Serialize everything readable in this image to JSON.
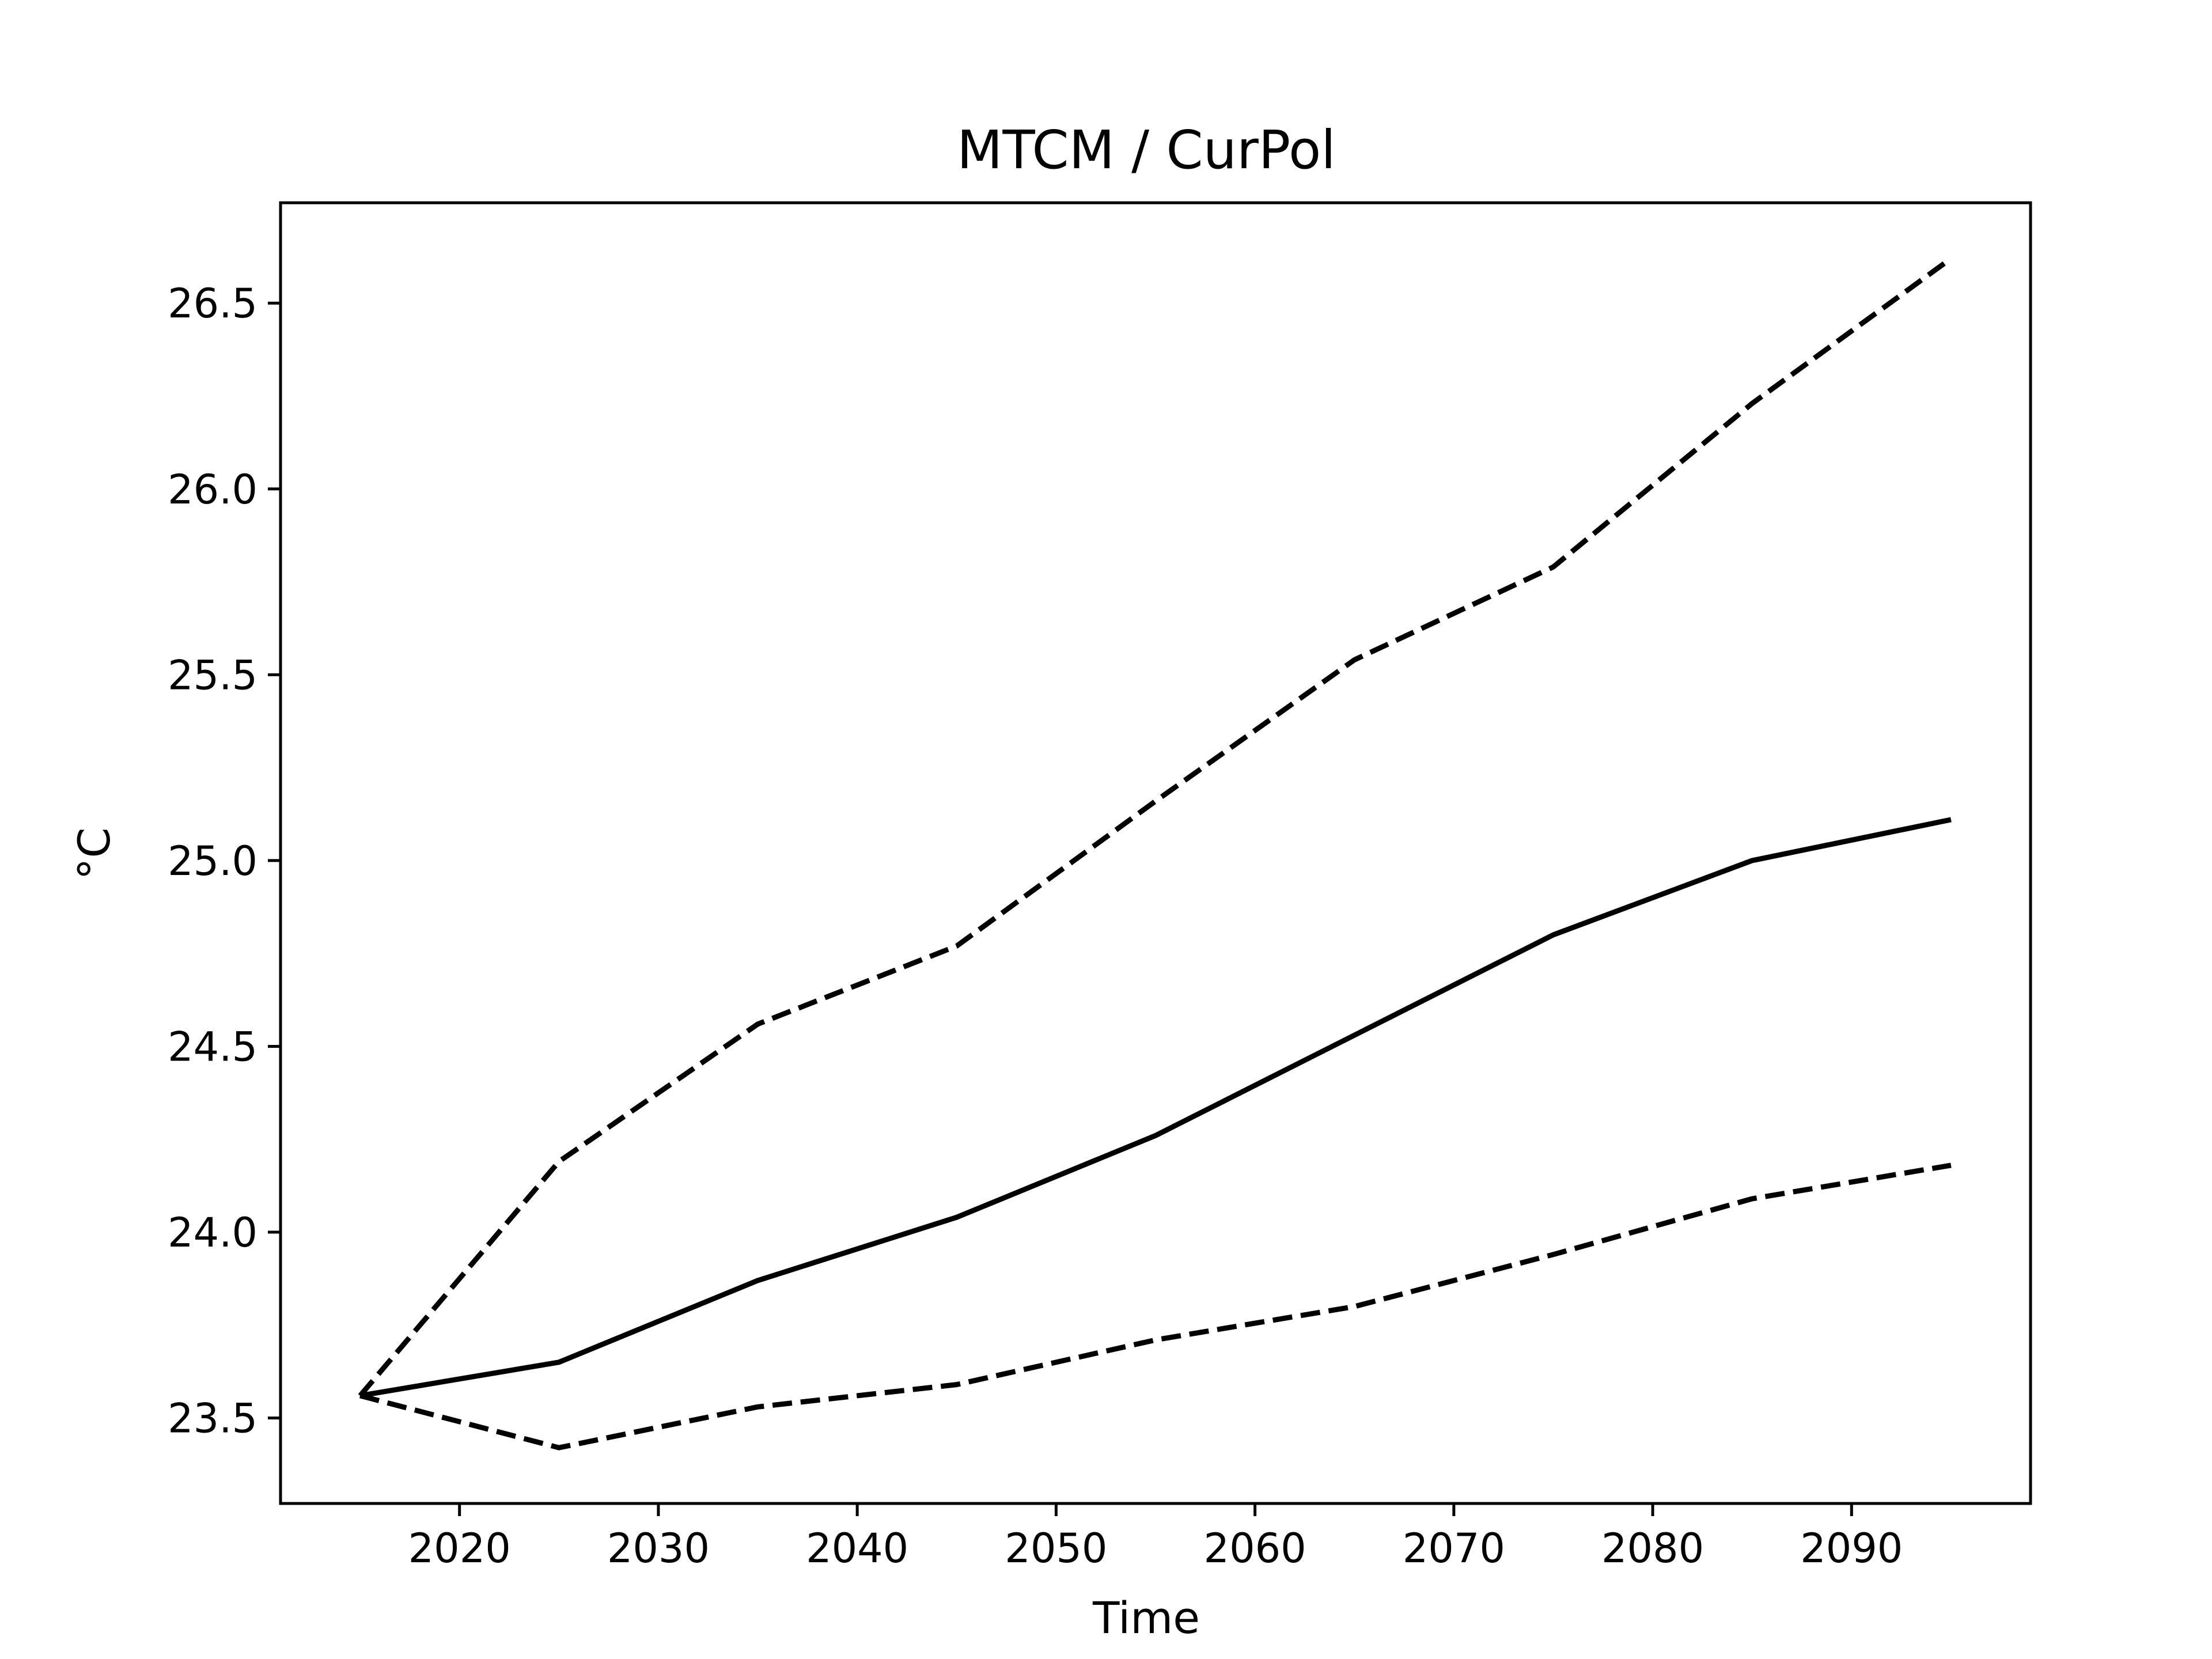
{
  "chart_data": {
    "type": "line",
    "title": "MTCM / CurPol",
    "xlabel": "Time",
    "ylabel": "°C",
    "xlim": [
      2011,
      2099
    ],
    "ylim": [
      23.27,
      26.77
    ],
    "x_ticks": [
      2020,
      2030,
      2040,
      2050,
      2060,
      2070,
      2080,
      2090
    ],
    "y_ticks": [
      23.5,
      24.0,
      24.5,
      25.0,
      25.5,
      26.0,
      26.5
    ],
    "y_tick_labels": [
      "23.5",
      "24.0",
      "24.5",
      "25.0",
      "25.5",
      "26.0",
      "26.5"
    ],
    "grid": false,
    "x": [
      2015,
      2025,
      2035,
      2045,
      2055,
      2065,
      2075,
      2085,
      2095
    ],
    "series": [
      {
        "style": "solid",
        "color": "#000000",
        "values": [
          23.56,
          23.65,
          23.87,
          24.04,
          24.26,
          24.53,
          24.8,
          25.0,
          25.11
        ]
      },
      {
        "style": "dashed",
        "color": "#000000",
        "values": [
          23.56,
          24.19,
          24.56,
          24.77,
          25.16,
          25.54,
          25.79,
          26.23,
          26.62
        ]
      },
      {
        "style": "dashed",
        "color": "#000000",
        "values": [
          23.56,
          23.42,
          23.53,
          23.59,
          23.71,
          23.8,
          23.94,
          24.09,
          24.18
        ]
      }
    ]
  }
}
